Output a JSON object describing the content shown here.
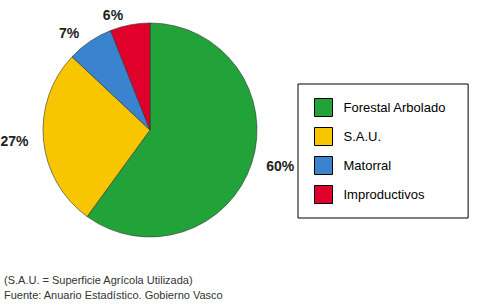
{
  "chart_data": {
    "type": "pie",
    "categories": [
      "Forestal Arbolado",
      "S.A.U.",
      "Matorral",
      "Improductivos"
    ],
    "values": [
      60,
      27,
      7,
      6
    ],
    "value_labels": [
      "60%",
      "27%",
      "7%",
      "6%"
    ],
    "colors": [
      "#22a33a",
      "#f8c600",
      "#3a84cf",
      "#e0002a"
    ],
    "data_labels": true,
    "legend": "right",
    "annotations": [
      "(S.A.U. = Superficie Agrícola Utilizada)",
      "Fuente: Anuario Estadístico. Gobierno Vasco"
    ]
  }
}
